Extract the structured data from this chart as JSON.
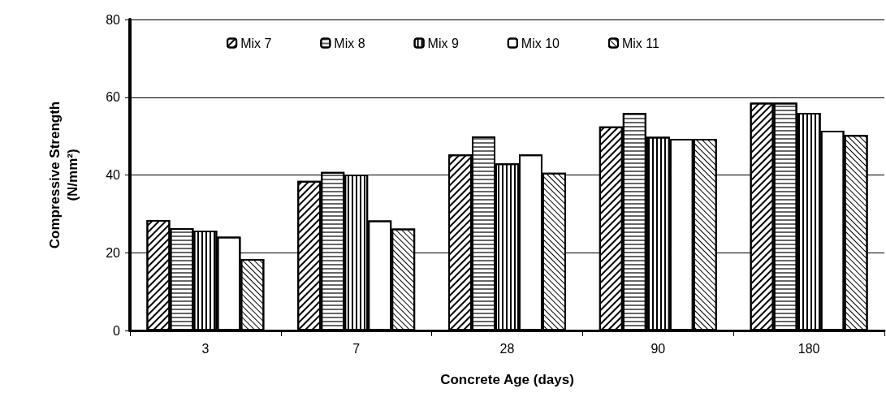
{
  "chart_data": {
    "type": "bar",
    "xlabel": "Concrete Age (days)",
    "ylabel": "Compressive Strength (N/mm²)",
    "categories": [
      "3",
      "7",
      "28",
      "90",
      "180"
    ],
    "series": [
      {
        "name": "Mix 7",
        "color": "#ffffff",
        "values": [
          28.4,
          38.5,
          45.3,
          52.5,
          58.6
        ]
      },
      {
        "name": "Mix 8",
        "color": "#ffffff",
        "values": [
          26.3,
          40.8,
          49.9,
          56.0,
          58.6
        ]
      },
      {
        "name": "Mix 9",
        "color": "#ffffff",
        "values": [
          25.7,
          40.1,
          43.0,
          49.8,
          56.0
        ]
      },
      {
        "name": "Mix 10",
        "color": "#ffffff",
        "values": [
          24.1,
          28.3,
          45.3,
          49.3,
          51.4
        ]
      },
      {
        "name": "Mix 11",
        "color": "#ffffff",
        "values": [
          18.4,
          26.2,
          40.6,
          49.3,
          50.3
        ]
      }
    ],
    "ylim": [
      0,
      80
    ],
    "yticks": [
      0,
      20,
      40,
      60,
      80
    ],
    "grid": "y",
    "legend": "top"
  }
}
